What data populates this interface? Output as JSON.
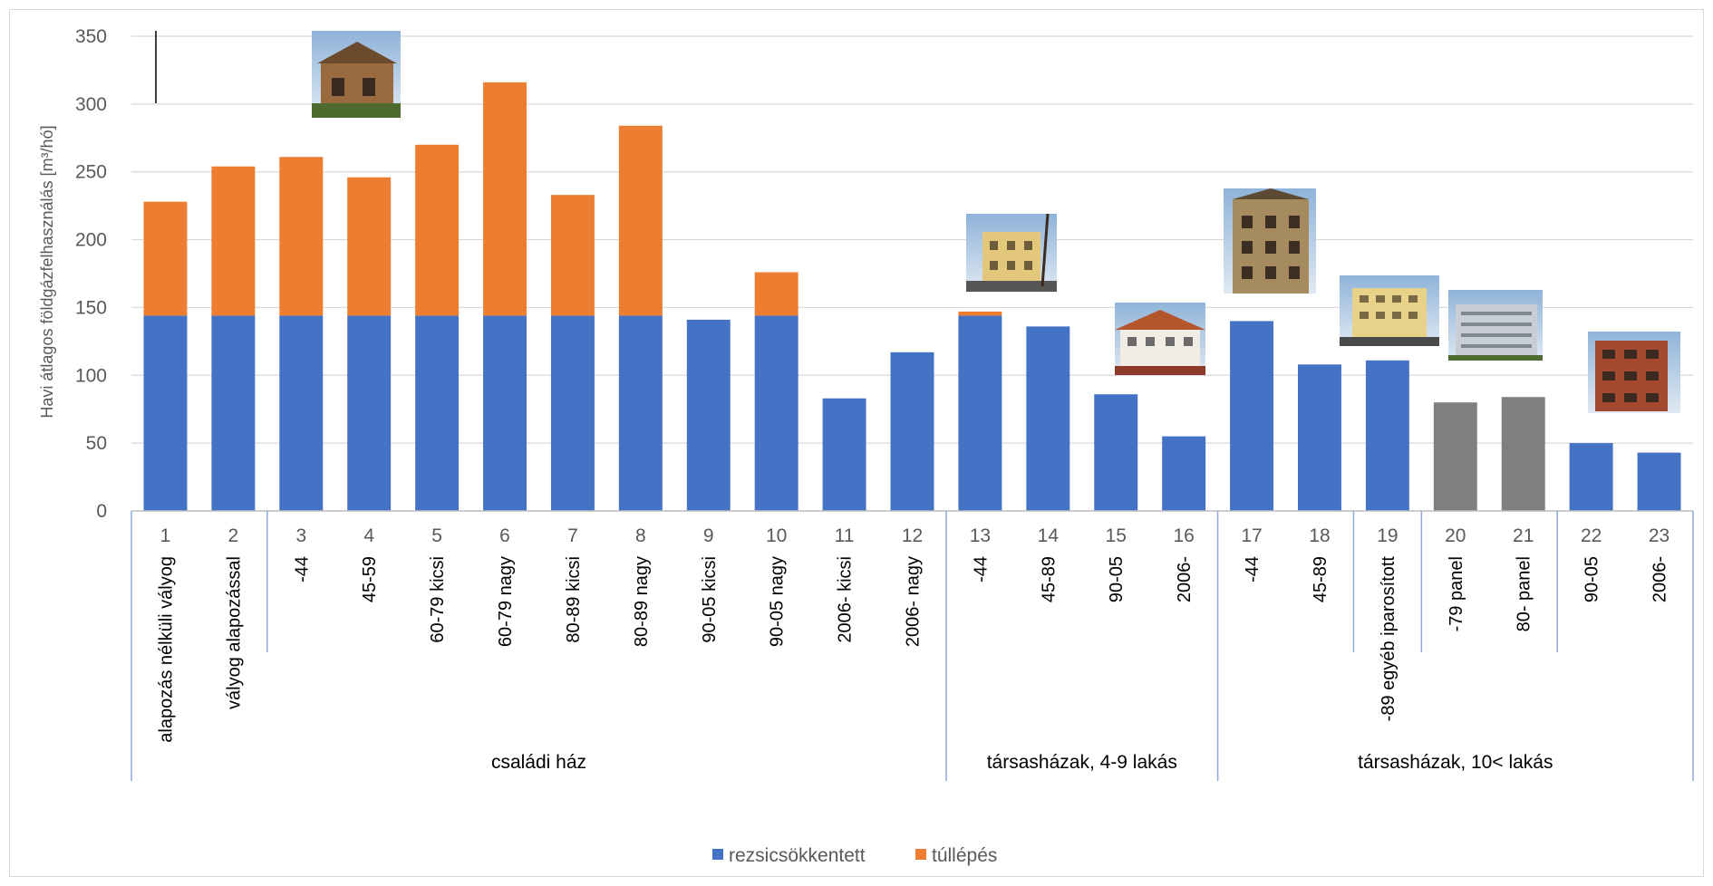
{
  "chart_data": {
    "type": "bar",
    "stacked": true,
    "title": "",
    "ylabel": "Havi átlagos földgázfelhasználás [m³/hó]",
    "ylim": [
      0,
      350
    ],
    "yticks": [
      0,
      50,
      100,
      150,
      200,
      250,
      300,
      350
    ],
    "grid": true,
    "legend_position": "bottom",
    "categories": [
      "1",
      "2",
      "3",
      "4",
      "5",
      "6",
      "7",
      "8",
      "9",
      "10",
      "11",
      "12",
      "13",
      "14",
      "15",
      "16",
      "17",
      "18",
      "19",
      "20",
      "21",
      "22",
      "23"
    ],
    "subcategories": [
      "alapozás nélküli vályog",
      "vályog alapozással",
      "-44",
      "45-59",
      "60-79 kicsi",
      "60-79 nagy",
      "80-89 kicsi",
      "80-89 nagy",
      "90-05 kicsi",
      "90-05 nagy",
      "2006- kicsi",
      "2006- nagy",
      "-44",
      "45-89",
      "90-05",
      "2006-",
      "-44",
      "45-89",
      "-89 egyéb iparosított",
      "-79 panel",
      "80- panel",
      "90-05",
      "2006-"
    ],
    "groups": [
      {
        "label": "családi ház",
        "from": 1,
        "to": 12
      },
      {
        "label": "társasházak, 4-9 lakás",
        "from": 13,
        "to": 16
      },
      {
        "label": "társasházak, 10< lakás",
        "from": 17,
        "to": 23
      }
    ],
    "series": [
      {
        "name": "rezsicsökkentett",
        "color": "#4472c4",
        "values": [
          144,
          144,
          144,
          144,
          144,
          144,
          144,
          144,
          141,
          144,
          83,
          117,
          144,
          136,
          86,
          55,
          140,
          108,
          111,
          80,
          84,
          50,
          43
        ]
      },
      {
        "name": "túllépés",
        "color": "#ed7d31",
        "values": [
          84,
          110,
          117,
          102,
          126,
          172,
          89,
          140,
          0,
          32,
          0,
          0,
          3,
          0,
          0,
          0,
          0,
          0,
          0,
          0,
          0,
          0,
          0
        ]
      }
    ],
    "gray_bar_color": "#7f7f7f",
    "gray_bars": [
      20,
      21
    ]
  }
}
